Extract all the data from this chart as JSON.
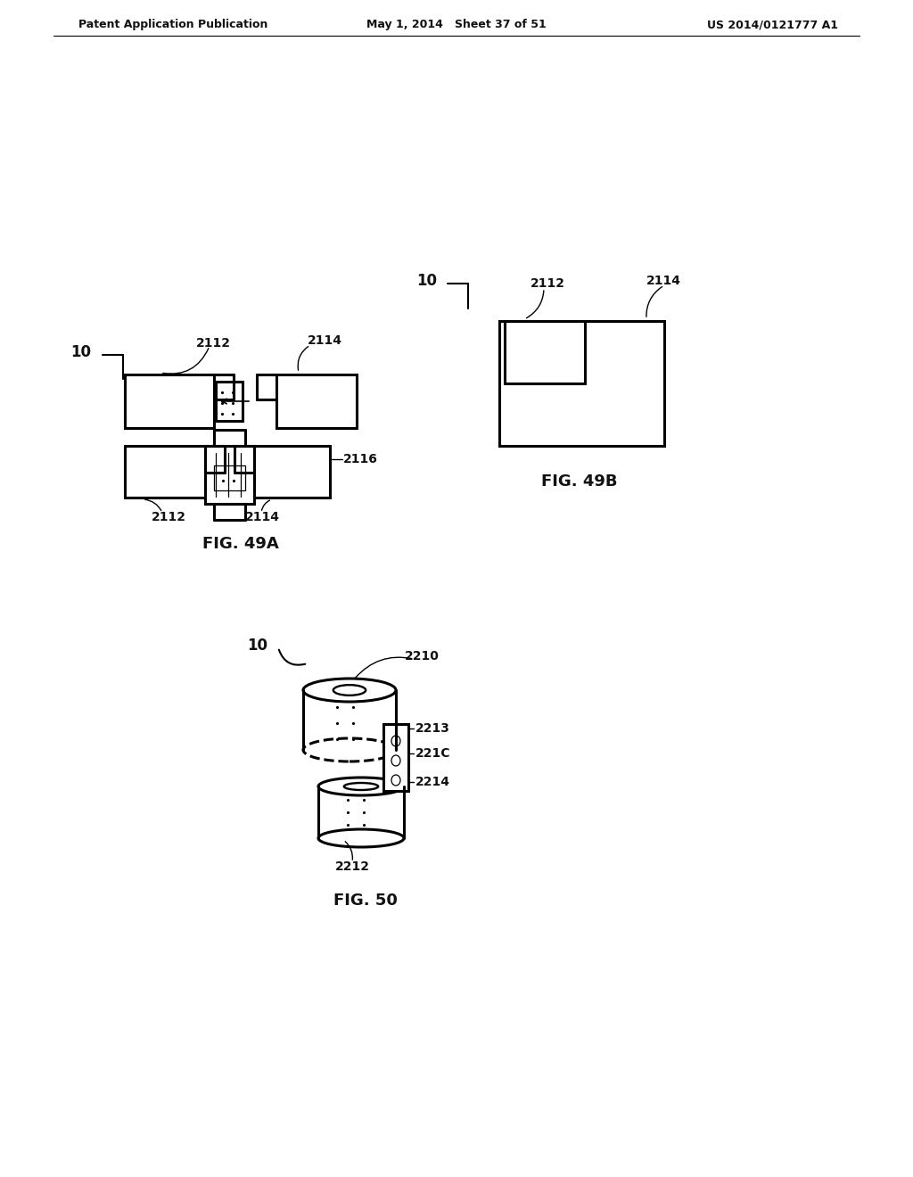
{
  "bg_color": "#ffffff",
  "header_left": "Patent Application Publication",
  "header_mid": "May 1, 2014   Sheet 37 of 51",
  "header_right": "US 2014/0121777 A1",
  "fig49a_label": "FIG. 49A",
  "fig49b_label": "FIG. 49B",
  "fig50_label": "FIG. 50",
  "text_color": "#000000",
  "line_color": "#000000",
  "line_width": 2.2
}
